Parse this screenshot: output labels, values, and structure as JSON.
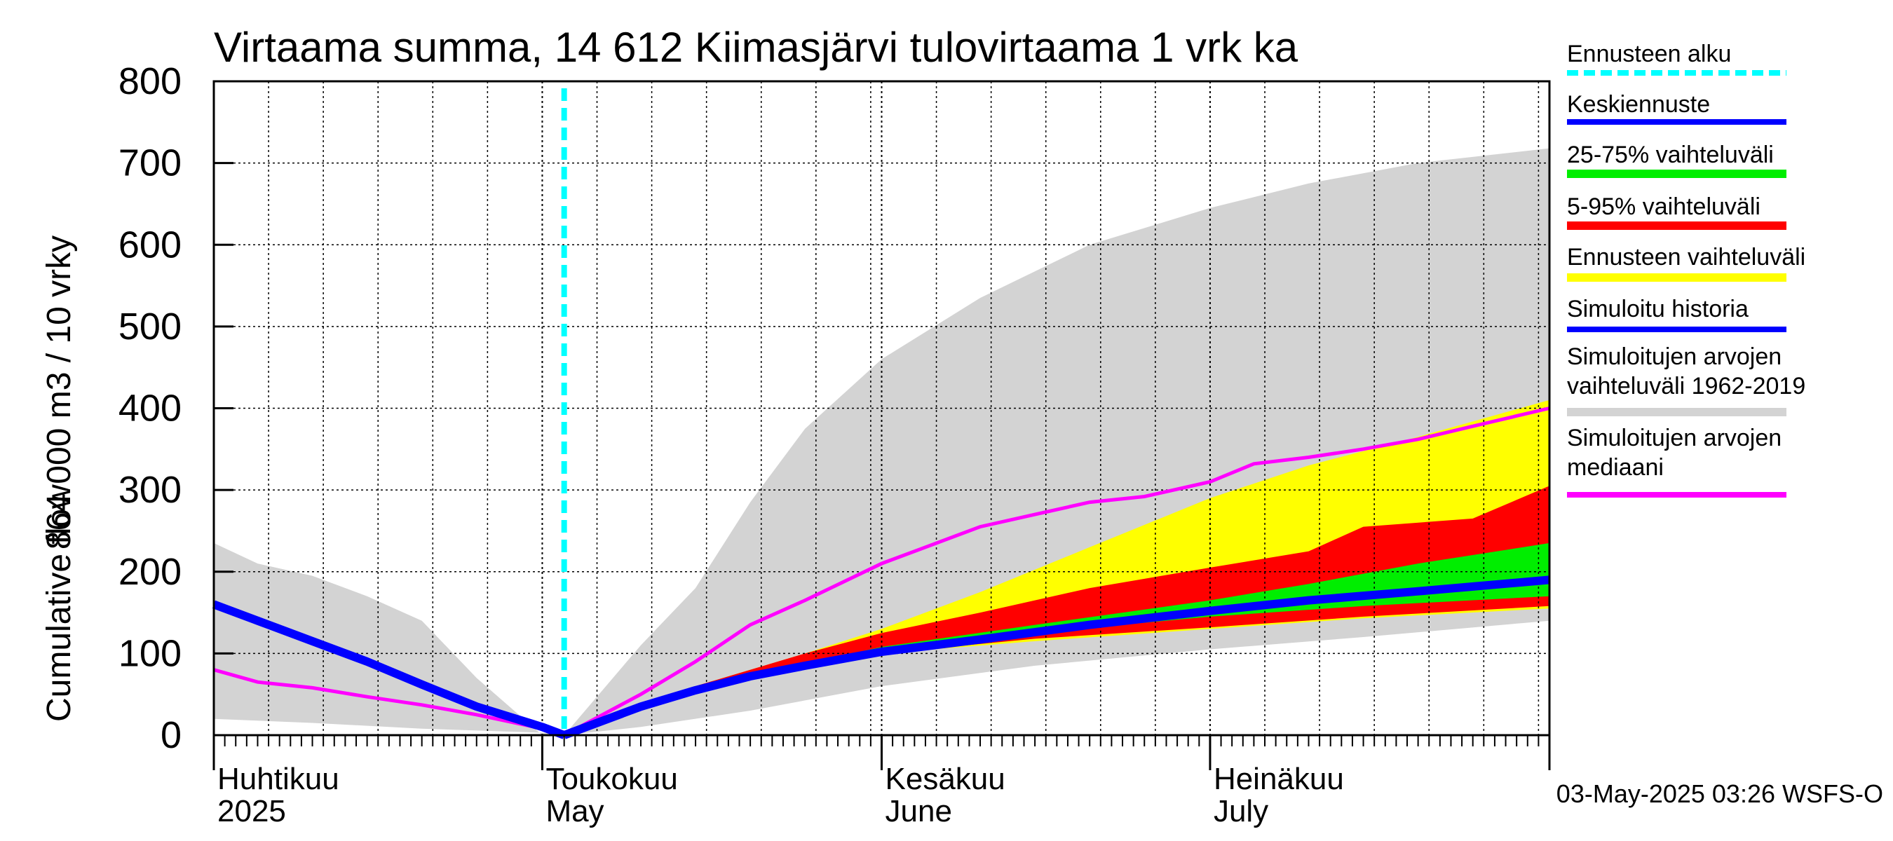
{
  "chart_data": {
    "type": "area",
    "title": "Virtaama summa, 14 612 Kiimasjärvi tulovirtaama 1 vrk ka",
    "ylabel_top": "864 000 m3 / 10 vrky",
    "ylabel_bottom": "Cumulative flow",
    "ylim": [
      0,
      800
    ],
    "yticks": [
      "0",
      "100",
      "200",
      "300",
      "400",
      "500",
      "600",
      "700",
      "800"
    ],
    "xlim": [
      "2025-04-01",
      "2025-08-01"
    ],
    "x_month_labels": [
      {
        "date": "2025-04-01",
        "line1": "Huhtikuu",
        "line2": "2025"
      },
      {
        "date": "2025-05-01",
        "line1": "Toukokuu",
        "line2": "May"
      },
      {
        "date": "2025-06-01",
        "line1": "Kesäkuu",
        "line2": "June"
      },
      {
        "date": "2025-07-01",
        "line1": "Heinäkuu",
        "line2": "July"
      }
    ],
    "grid": true,
    "legend_position": "right",
    "timestamp": "03-May-2025 03:26 WSFS-O",
    "forecast_start": "2025-05-03",
    "legend": [
      {
        "label": "Ennusteen alku",
        "color": "#00ffff",
        "style": "dashed"
      },
      {
        "label": "Keskiennuste",
        "color": "#0000ff",
        "style": "line"
      },
      {
        "label": "25-75% vaihteluväli",
        "color": "#00ee00",
        "style": "band"
      },
      {
        "label": "5-95% vaihteluväli",
        "color": "#ff0000",
        "style": "band"
      },
      {
        "label": "Ennusteen vaihteluväli",
        "color": "#ffff00",
        "style": "band"
      },
      {
        "label": "Simuloitu historia",
        "color": "#0000ff",
        "style": "line"
      },
      {
        "label": "Simuloitujen arvojen\nvaihteluväli 1962-2019",
        "color": "#d3d3d3",
        "style": "band"
      },
      {
        "label": "Simuloitujen arvojen\nmediaani",
        "color": "#ff00ff",
        "style": "line"
      }
    ],
    "series": {
      "hist_range_upper": {
        "x": [
          "2025-04-01",
          "2025-04-05",
          "2025-04-10",
          "2025-04-15",
          "2025-04-20",
          "2025-04-25",
          "2025-05-01",
          "2025-05-03",
          "2025-05-10",
          "2025-05-15",
          "2025-05-20",
          "2025-05-25",
          "2025-06-01",
          "2025-06-10",
          "2025-06-20",
          "2025-07-01",
          "2025-07-10",
          "2025-07-20",
          "2025-08-01"
        ],
        "y": [
          235,
          210,
          195,
          170,
          140,
          70,
          0,
          0,
          110,
          180,
          285,
          375,
          460,
          535,
          600,
          645,
          675,
          700,
          718
        ]
      },
      "hist_range_lower": {
        "x": [
          "2025-04-01",
          "2025-04-10",
          "2025-04-20",
          "2025-05-01",
          "2025-05-03",
          "2025-05-10",
          "2025-05-20",
          "2025-06-01",
          "2025-06-15",
          "2025-07-01",
          "2025-07-15",
          "2025-08-01"
        ],
        "y": [
          20,
          15,
          8,
          3,
          0,
          10,
          30,
          60,
          85,
          105,
          120,
          140
        ]
      },
      "ennuste_range_upper": {
        "x": [
          "2025-05-03",
          "2025-05-15",
          "2025-05-25",
          "2025-06-01",
          "2025-06-10",
          "2025-06-20",
          "2025-07-01",
          "2025-07-10",
          "2025-07-20",
          "2025-08-01"
        ],
        "y": [
          0,
          60,
          100,
          130,
          175,
          230,
          290,
          330,
          365,
          410
        ]
      },
      "ennuste_range_lower": {
        "x": [
          "2025-05-03",
          "2025-05-15",
          "2025-06-01",
          "2025-06-15",
          "2025-07-01",
          "2025-07-15",
          "2025-08-01"
        ],
        "y": [
          0,
          55,
          100,
          115,
          130,
          143,
          155
        ]
      },
      "p95": {
        "x": [
          "2025-05-03",
          "2025-05-15",
          "2025-05-25",
          "2025-06-01",
          "2025-06-10",
          "2025-06-20",
          "2025-07-01",
          "2025-07-10",
          "2025-07-15",
          "2025-07-25",
          "2025-08-01"
        ],
        "y": [
          0,
          60,
          100,
          125,
          150,
          180,
          205,
          225,
          255,
          265,
          305
        ]
      },
      "p05": {
        "x": [
          "2025-05-03",
          "2025-05-15",
          "2025-06-01",
          "2025-06-15",
          "2025-07-01",
          "2025-07-15",
          "2025-08-01"
        ],
        "y": [
          0,
          55,
          100,
          118,
          132,
          145,
          158
        ]
      },
      "p75": {
        "x": [
          "2025-05-03",
          "2025-05-15",
          "2025-06-01",
          "2025-06-15",
          "2025-07-01",
          "2025-07-10",
          "2025-07-20",
          "2025-08-01"
        ],
        "y": [
          0,
          58,
          108,
          135,
          165,
          185,
          210,
          235
        ]
      },
      "p25": {
        "x": [
          "2025-05-03",
          "2025-05-15",
          "2025-06-01",
          "2025-06-15",
          "2025-07-01",
          "2025-07-15",
          "2025-08-01"
        ],
        "y": [
          0,
          56,
          103,
          125,
          145,
          158,
          170
        ]
      },
      "keskiennuste": {
        "x": [
          "2025-05-03",
          "2025-05-10",
          "2025-05-15",
          "2025-05-20",
          "2025-05-25",
          "2025-06-01",
          "2025-06-10",
          "2025-06-20",
          "2025-07-01",
          "2025-07-10",
          "2025-07-20",
          "2025-08-01"
        ],
        "y": [
          0,
          35,
          55,
          72,
          85,
          102,
          117,
          135,
          152,
          165,
          176,
          190
        ]
      },
      "simuloitu_historia": {
        "x": [
          "2025-04-01",
          "2025-04-05",
          "2025-04-10",
          "2025-04-15",
          "2025-04-20",
          "2025-04-25",
          "2025-05-01",
          "2025-05-03"
        ],
        "y": [
          160,
          140,
          115,
          90,
          62,
          35,
          10,
          0
        ]
      },
      "mediaani": {
        "x": [
          "2025-04-01",
          "2025-04-05",
          "2025-04-10",
          "2025-04-15",
          "2025-04-20",
          "2025-04-25",
          "2025-05-01",
          "2025-05-03",
          "2025-05-10",
          "2025-05-15",
          "2025-05-20",
          "2025-05-25",
          "2025-06-01",
          "2025-06-05",
          "2025-06-10",
          "2025-06-15",
          "2025-06-20",
          "2025-06-25",
          "2025-07-01",
          "2025-07-05",
          "2025-07-10",
          "2025-07-15",
          "2025-07-20",
          "2025-07-25",
          "2025-08-01"
        ],
        "y": [
          80,
          65,
          58,
          47,
          37,
          25,
          8,
          0,
          50,
          90,
          135,
          165,
          210,
          230,
          255,
          270,
          285,
          292,
          310,
          332,
          340,
          350,
          362,
          378,
          400
        ]
      }
    }
  }
}
